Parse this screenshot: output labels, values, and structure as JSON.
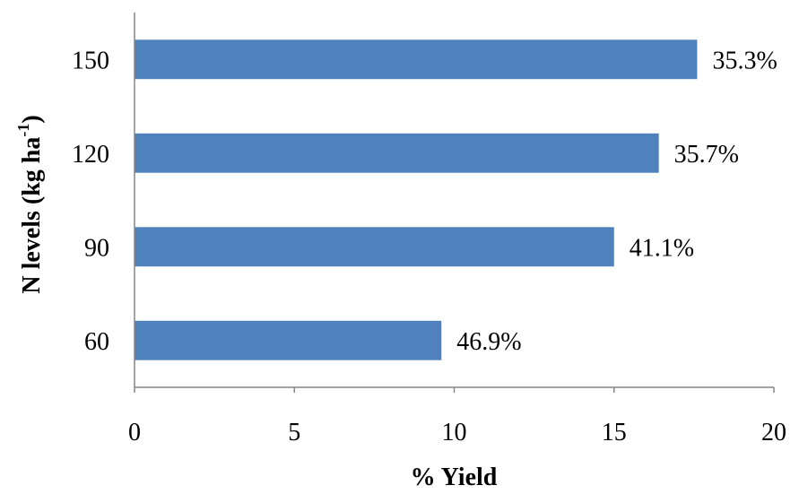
{
  "chart_data": {
    "type": "bar",
    "orientation": "horizontal",
    "categories": [
      "150",
      "120",
      "90",
      "60"
    ],
    "values": [
      17.6,
      16.4,
      15.0,
      9.6
    ],
    "data_labels": [
      "35.3%",
      "35.7%",
      "41.1%",
      "46.9%"
    ],
    "xlabel": "% Yield",
    "ylabel_main": "N levels (kg ha",
    "ylabel_sup": "-1",
    "ylabel_close": ")",
    "xlim": [
      0,
      20
    ],
    "xticks": [
      "0",
      "5",
      "10",
      "15",
      "20"
    ],
    "bar_color": "#4F81BD",
    "grid": false,
    "legend": "none"
  }
}
